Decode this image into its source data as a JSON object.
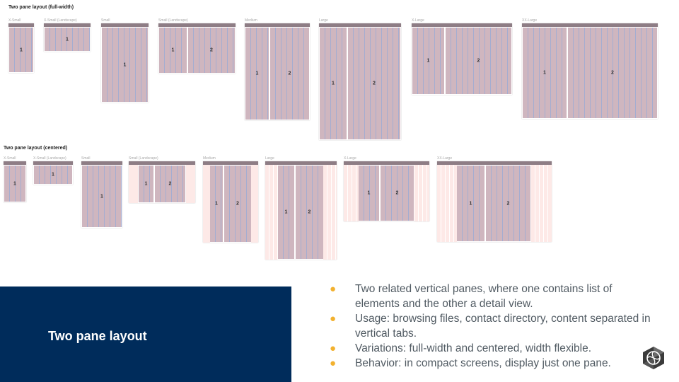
{
  "sections": [
    {
      "title": "Two pane layout (full-width)",
      "breakpoints": [
        {
          "label": "X-Small",
          "panes": [
            "1"
          ]
        },
        {
          "label": "X-Small (Landscape)",
          "panes": [
            "1"
          ]
        },
        {
          "label": "Small",
          "panes": [
            "1"
          ]
        },
        {
          "label": "Small (Landscape)",
          "panes": [
            "1",
            "2"
          ]
        },
        {
          "label": "Medium",
          "panes": [
            "1",
            "2"
          ]
        },
        {
          "label": "Large",
          "panes": [
            "1",
            "2"
          ]
        },
        {
          "label": "X-Large",
          "panes": [
            "1",
            "2"
          ]
        },
        {
          "label": "XX-Large",
          "panes": [
            "1",
            "2"
          ]
        }
      ]
    },
    {
      "title": "Two pane layout (centered)",
      "breakpoints": [
        {
          "label": "X-Small",
          "panes": [
            "1"
          ]
        },
        {
          "label": "X-Small (Landscape)",
          "panes": [
            "1"
          ]
        },
        {
          "label": "Small",
          "panes": [
            "1"
          ]
        },
        {
          "label": "Small (Landscape)",
          "panes": [
            "1",
            "2"
          ]
        },
        {
          "label": "Medium",
          "panes": [
            "1",
            "2"
          ]
        },
        {
          "label": "Large",
          "panes": [
            "1",
            "2"
          ]
        },
        {
          "label": "X-Large",
          "panes": [
            "1",
            "2"
          ]
        },
        {
          "label": "XX-Large",
          "panes": [
            "1",
            "2"
          ]
        }
      ]
    }
  ],
  "panel": {
    "title": "Two pane layout"
  },
  "bullets": [
    "Two related vertical panes, where one contains list of elements and the other a detail view.",
    "Usage: browsing files, contact directory, content separated in vertical tabs.",
    "Variations: full-width and centered, width flexible.",
    "Behavior: in compact screens, display just one pane."
  ],
  "colors": {
    "panel_bg": "#002c5b",
    "bullet_dot": "#f2b12f",
    "pane_fill": "#cfb6bf",
    "column_guide": "#96aad7",
    "margin_fill": "#fde9e7",
    "app_bar": "#8e7d85"
  },
  "logo": {
    "icon": "tangram-globe-icon"
  }
}
